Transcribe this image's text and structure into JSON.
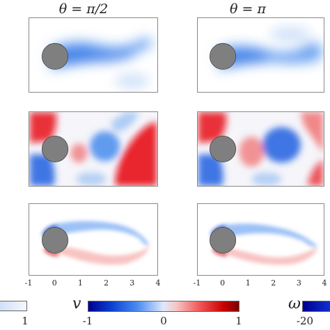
{
  "column_titles": [
    "θ = π/2",
    "θ = π"
  ],
  "x_axis_ticks": [
    "-1",
    "0",
    "1",
    "2",
    "3",
    "4"
  ],
  "colorbars": {
    "left_partial": {
      "label_right": "1"
    },
    "v": {
      "symbol": "v",
      "labels": [
        "-1",
        "0",
        "1"
      ]
    },
    "omega": {
      "symbol": "ω",
      "labels": [
        "-20"
      ]
    }
  },
  "colors": {
    "positive": "#e8101a",
    "negative": "#1f5fe0",
    "cylinder": "#7f7f7f",
    "frame": "#888888"
  }
}
